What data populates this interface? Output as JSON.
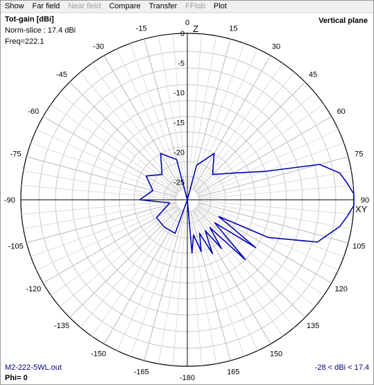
{
  "menu": {
    "items": [
      {
        "label": "Show",
        "enabled": true
      },
      {
        "label": "Far field",
        "enabled": true
      },
      {
        "label": "Near field",
        "enabled": false
      },
      {
        "label": "Compare",
        "enabled": true
      },
      {
        "label": "Transfer",
        "enabled": true
      },
      {
        "label": "FFtab",
        "enabled": false
      },
      {
        "label": "Plot",
        "enabled": true
      }
    ]
  },
  "plot": {
    "title": "Tot-gain [dBi]",
    "norm_slice": "Norm-slice : 17.4 dBi",
    "freq": "Freq=222.1",
    "plane": "Vertical plane",
    "file": "M2-222-5WL.out",
    "range": "-28 < dBi < 17.4",
    "phi": "Phi= 0",
    "axis_top": "Z",
    "axis_right": "XY",
    "colors": {
      "pattern": "#0000b4",
      "grid": "#c8c8c8",
      "axis": "#000000",
      "text_blue": "#000080"
    }
  },
  "chart_data": {
    "type": "polar",
    "units": "dBi",
    "max_gain_dbi": 17.4,
    "min_gain_dbi": -28,
    "db_ticks": [
      -28,
      -25,
      -20,
      -15,
      -10,
      -5,
      0
    ],
    "angle_labels": [
      {
        "angle": 0,
        "label": "0"
      },
      {
        "angle": 15,
        "label": "15"
      },
      {
        "angle": 30,
        "label": "30"
      },
      {
        "angle": 45,
        "label": "45"
      },
      {
        "angle": 60,
        "label": "60"
      },
      {
        "angle": 75,
        "label": "75"
      },
      {
        "angle": 90,
        "label": "90"
      },
      {
        "angle": 105,
        "label": "105"
      },
      {
        "angle": 120,
        "label": "120"
      },
      {
        "angle": 135,
        "label": "135"
      },
      {
        "angle": 150,
        "label": "150"
      },
      {
        "angle": 165,
        "label": "165"
      },
      {
        "angle": 180,
        "label": "-180"
      },
      {
        "angle": -165,
        "label": "-165"
      },
      {
        "angle": -150,
        "label": "-150"
      },
      {
        "angle": -135,
        "label": "-135"
      },
      {
        "angle": -120,
        "label": "-120"
      },
      {
        "angle": -105,
        "label": "-105"
      },
      {
        "angle": -90,
        "label": "-90"
      },
      {
        "angle": -75,
        "label": "-75"
      },
      {
        "angle": -60,
        "label": "-60"
      },
      {
        "angle": -45,
        "label": "-45"
      },
      {
        "angle": -30,
        "label": "-30"
      },
      {
        "angle": -15,
        "label": "-15"
      }
    ],
    "series": [
      {
        "pattern_points": [
          {
            "angle": 0,
            "db": -28
          },
          {
            "angle": 80,
            "db": -2
          },
          {
            "angle": 84,
            "db": -1
          },
          {
            "angle": 88,
            "db": 0
          },
          {
            "angle": 90,
            "db": 0
          },
          {
            "angle": 92,
            "db": 0
          },
          {
            "angle": 96,
            "db": -1
          },
          {
            "angle": 100,
            "db": -2
          },
          {
            "angle": 108,
            "db": -5
          },
          {
            "angle": 115,
            "db": -13
          },
          {
            "angle": 118,
            "db": -22
          },
          {
            "angle": 125,
            "db": -14
          },
          {
            "angle": 130,
            "db": -22
          },
          {
            "angle": 136,
            "db": -14
          },
          {
            "angle": 141,
            "db": -22
          },
          {
            "angle": 145,
            "db": -18
          },
          {
            "angle": 150,
            "db": -22
          },
          {
            "angle": 155,
            "db": -18
          },
          {
            "angle": 160,
            "db": -22
          },
          {
            "angle": 165,
            "db": -19
          },
          {
            "angle": 170,
            "db": -22
          },
          {
            "angle": 175,
            "db": -19
          },
          {
            "angle": 180,
            "db": -28
          },
          {
            "angle": -160,
            "db": -22
          },
          {
            "angle": -140,
            "db": -22
          },
          {
            "angle": -120,
            "db": -22
          },
          {
            "angle": -100,
            "db": -25
          },
          {
            "angle": -90,
            "db": -20
          },
          {
            "angle": -75,
            "db": -22
          },
          {
            "angle": -60,
            "db": -20
          },
          {
            "angle": -45,
            "db": -22
          },
          {
            "angle": -30,
            "db": -19
          },
          {
            "angle": -15,
            "db": -21
          },
          {
            "angle": 15,
            "db": -22
          },
          {
            "angle": 30,
            "db": -19
          },
          {
            "angle": 45,
            "db": -22
          },
          {
            "angle": 60,
            "db": -19
          },
          {
            "angle": 70,
            "db": -14
          },
          {
            "angle": 75,
            "db": -5
          }
        ]
      }
    ]
  }
}
